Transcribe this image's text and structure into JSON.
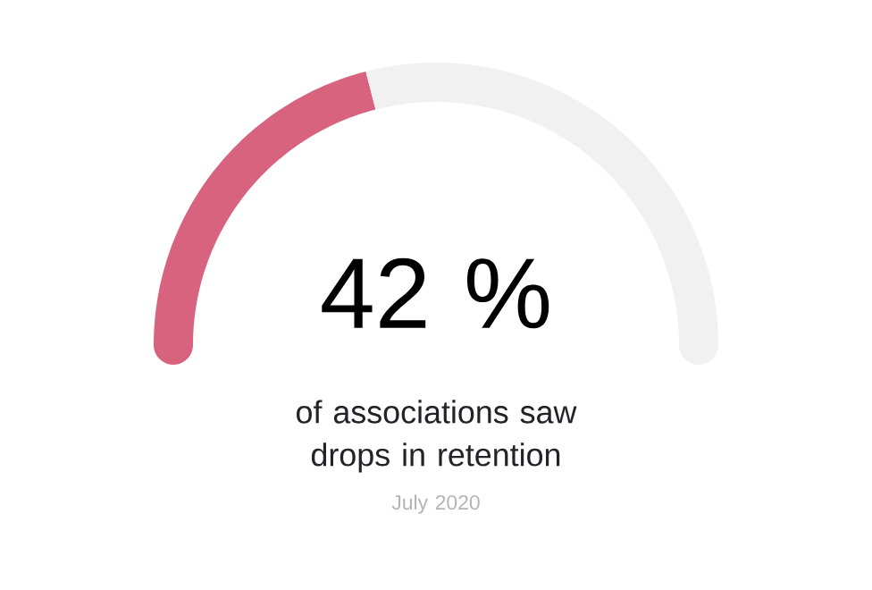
{
  "chart_data": {
    "type": "donut",
    "categories": [
      null,
      null
    ],
    "values": [
      42,
      58
    ],
    "colors": [
      "#d8637f",
      "#f1f1f1"
    ],
    "annotations": [
      "42 %",
      "of associations saw drops in retention",
      "July 2020"
    ]
  }
}
